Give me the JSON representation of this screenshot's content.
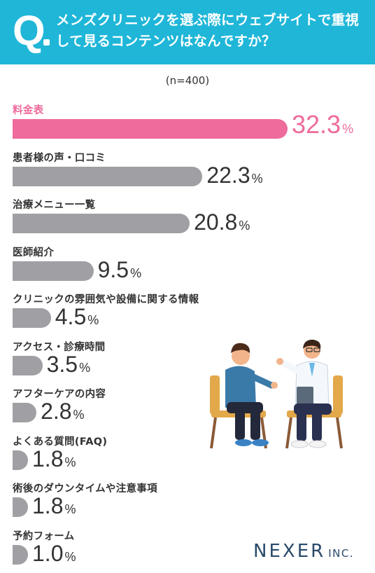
{
  "header": {
    "q_mark": "Q",
    "question": "メンズクリニックを選ぶ際にウェブサイトで重視して見るコンテンツはなんですか？"
  },
  "sample": "(n=400)",
  "chart_data": {
    "type": "bar",
    "orientation": "horizontal",
    "unit": "%",
    "highlight_color": "#ee6b9c",
    "bar_color": "#a0a0a4",
    "xlim": [
      0,
      32.3
    ],
    "categories": [
      "料金表",
      "患者様の声・口コミ",
      "治療メニュー一覧",
      "医師紹介",
      "クリニックの雰囲気や設備に関する情報",
      "アクセス・診療時間",
      "アフターケアの内容",
      "よくある質問(FAQ)",
      "術後のダウンタイムや注意事項",
      "予約フォーム"
    ],
    "values": [
      32.3,
      22.3,
      20.8,
      9.5,
      4.5,
      3.5,
      2.8,
      1.8,
      1.8,
      1.0
    ],
    "value_labels": [
      "32.3",
      "22.3",
      "20.8",
      "9.5",
      "4.5",
      "3.5",
      "2.8",
      "1.8",
      "1.8",
      "1.0"
    ],
    "highlight_index": 0
  },
  "logo": {
    "name": "NEXER",
    "suffix": "INC."
  }
}
